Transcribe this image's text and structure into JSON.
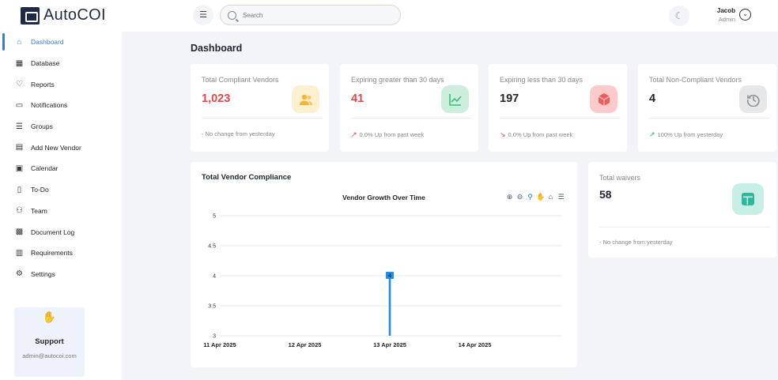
{
  "app": {
    "name": "AutoCOI"
  },
  "sidebar": {
    "items": [
      {
        "label": "Dashboard",
        "icon": "home-icon",
        "active": true
      },
      {
        "label": "Database",
        "icon": "grid-icon"
      },
      {
        "label": "Reports",
        "icon": "heart-icon"
      },
      {
        "label": "Notifications",
        "icon": "chat-icon"
      },
      {
        "label": "Groups",
        "icon": "list-icon"
      },
      {
        "label": "Add New Vendor",
        "icon": "table-icon"
      },
      {
        "label": "Calendar",
        "icon": "calendar-icon"
      },
      {
        "label": "To-Do",
        "icon": "document-icon"
      },
      {
        "label": "Team",
        "icon": "users-icon"
      },
      {
        "label": "Document Log",
        "icon": "gift-icon"
      },
      {
        "label": "Requirements",
        "icon": "bar-chart-icon"
      },
      {
        "label": "Settings",
        "icon": "gear-icon"
      }
    ],
    "support": {
      "title": "Support",
      "email": "admin@autocoi.com"
    }
  },
  "header": {
    "search_placeholder": "Search",
    "user": {
      "name": "Jacob",
      "role": "Admin"
    }
  },
  "page": {
    "title": "Dashboard"
  },
  "stats": [
    {
      "label": "Total Compliant Vendors",
      "value": "1,023",
      "value_color": "#e04848",
      "badge_bg": "#fdf0cf",
      "badge_color": "#f2b43c",
      "icon": "users-icon",
      "foot": "- No change from yesterday",
      "trend": "none"
    },
    {
      "label": "Expiring greater than 30 days",
      "value": "41",
      "value_color": "#e04848",
      "badge_bg": "#cdeedd",
      "badge_color": "#3cbf7a",
      "icon": "line-chart-icon",
      "foot": "0.0% Up from past week",
      "trend": "up",
      "trend_color": "#e04848"
    },
    {
      "label": "Expiring less than 30 days",
      "value": "197",
      "value_color": "#1f2430",
      "badge_bg": "#fbcaca",
      "badge_color": "#ee5b5b",
      "icon": "cube-icon",
      "foot": "0.0% Up from past week",
      "trend": "down",
      "trend_color": "#e04848"
    },
    {
      "label": "Total Non-Compliant Vendors",
      "value": "4",
      "value_color": "#1f2430",
      "badge_bg": "#e6e7e9",
      "badge_color": "#8f9297",
      "icon": "history-icon",
      "foot": "100% Up from yesterday",
      "trend": "up",
      "trend_color": "#2aa876"
    }
  ],
  "waivers": {
    "label": "Total waivers",
    "value": "58",
    "icon": "layout-icon",
    "foot": "- No change from yesterday"
  },
  "chart": {
    "card_title": "Total Vendor Compliance"
  },
  "chart_data": {
    "type": "bar",
    "title": "Vendor Growth Over Time",
    "x": [
      "11 Apr 2025",
      "12 Apr 2025",
      "13 Apr 2025",
      "14 Apr 2025"
    ],
    "points": [
      {
        "x": "13 Apr 2025",
        "y": 4
      }
    ],
    "y_ticks": [
      "5",
      "4.5",
      "4",
      "3.5",
      "3"
    ],
    "ylim": [
      3,
      5
    ],
    "data_labels": [
      "4"
    ],
    "color": "#1f8ce6",
    "xlabel": "",
    "ylabel": "",
    "grid": true
  },
  "chart_toolbar": [
    "zoom-in-icon",
    "zoom-out-icon",
    "selection-zoom-icon",
    "pan-icon",
    "reset-home-icon",
    "menu-icon"
  ]
}
